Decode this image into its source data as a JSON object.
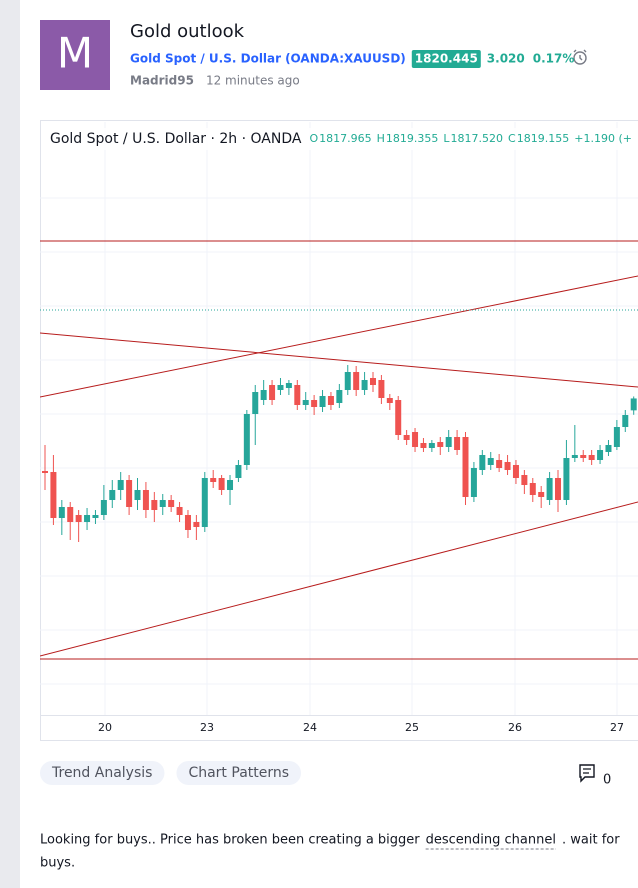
{
  "header": {
    "avatar_letter": "M",
    "title": "Gold outlook",
    "symbol_name": "Gold Spot / U.S. Dollar",
    "symbol_code": "(OANDA:XAUUSD)",
    "price": "1820.445",
    "change": "3.020",
    "change_percent": "0.17%",
    "author": "Madrid95",
    "time": "12 minutes ago"
  },
  "chart_data": {
    "type": "candlestick",
    "title": "Gold Spot / U.S. Dollar · 2h · OANDA",
    "legend": [
      {
        "key": "O",
        "text": "1817.965"
      },
      {
        "key": "H",
        "text": "1819.355"
      },
      {
        "key": "L",
        "text": "1817.520"
      },
      {
        "key": "C",
        "text": "1819.155"
      }
    ],
    "legend_change": "+1.190 (+",
    "xlabels": [
      "20",
      "23",
      "24",
      "25",
      "26",
      "27"
    ],
    "ylim": [
      1787.5,
      1844
    ],
    "up_color": "#26a69a",
    "down_color": "#ef5350",
    "candles": [
      [
        1811.9,
        1814.5,
        1810.0,
        1811.7
      ],
      [
        1811.8,
        1813.5,
        1806.5,
        1807.2
      ],
      [
        1807.2,
        1809.0,
        1805.5,
        1808.3
      ],
      [
        1808.3,
        1808.8,
        1805.0,
        1806.8
      ],
      [
        1807.5,
        1808.0,
        1804.8,
        1806.8
      ],
      [
        1806.8,
        1808.2,
        1806.0,
        1807.5
      ],
      [
        1807.2,
        1808.0,
        1806.6,
        1807.5
      ],
      [
        1807.5,
        1810.5,
        1807.0,
        1809.0
      ],
      [
        1809.0,
        1811.0,
        1808.2,
        1810.0
      ],
      [
        1810.0,
        1811.8,
        1809.0,
        1811.0
      ],
      [
        1811.0,
        1811.5,
        1807.5,
        1808.3
      ],
      [
        1809.0,
        1811.2,
        1808.0,
        1810.0
      ],
      [
        1810.0,
        1810.8,
        1807.2,
        1808.0
      ],
      [
        1809.0,
        1809.8,
        1806.8,
        1808.0
      ],
      [
        1808.3,
        1809.6,
        1807.5,
        1809.0
      ],
      [
        1809.0,
        1809.5,
        1807.8,
        1808.3
      ],
      [
        1808.3,
        1808.8,
        1806.8,
        1807.5
      ],
      [
        1807.5,
        1808.0,
        1805.2,
        1806.0
      ],
      [
        1806.8,
        1807.5,
        1805.0,
        1806.3
      ],
      [
        1806.3,
        1811.8,
        1805.8,
        1811.2
      ],
      [
        1811.2,
        1812.0,
        1810.2,
        1810.8
      ],
      [
        1811.2,
        1811.5,
        1809.5,
        1810.0
      ],
      [
        1810.0,
        1811.5,
        1808.5,
        1811.0
      ],
      [
        1811.2,
        1813.0,
        1810.8,
        1812.5
      ],
      [
        1812.5,
        1818.0,
        1812.0,
        1817.6
      ],
      [
        1817.6,
        1820.5,
        1814.5,
        1819.8
      ],
      [
        1819.0,
        1821.0,
        1818.5,
        1820.0
      ],
      [
        1820.5,
        1821.0,
        1818.5,
        1819.0
      ],
      [
        1820.0,
        1821.2,
        1819.5,
        1820.5
      ],
      [
        1820.2,
        1821.0,
        1819.5,
        1820.7
      ],
      [
        1820.5,
        1821.0,
        1818.0,
        1818.5
      ],
      [
        1818.5,
        1819.8,
        1818.0,
        1819.0
      ],
      [
        1819.0,
        1819.5,
        1817.5,
        1818.3
      ],
      [
        1818.3,
        1820.0,
        1817.8,
        1819.4
      ],
      [
        1819.4,
        1819.8,
        1818.0,
        1818.5
      ],
      [
        1818.7,
        1820.6,
        1818.2,
        1820.0
      ],
      [
        1820.0,
        1822.5,
        1819.5,
        1821.8
      ],
      [
        1821.8,
        1822.4,
        1819.4,
        1820.0
      ],
      [
        1820.0,
        1821.8,
        1819.5,
        1821.0
      ],
      [
        1821.2,
        1821.8,
        1819.8,
        1820.5
      ],
      [
        1821.0,
        1821.5,
        1818.6,
        1819.2
      ],
      [
        1819.2,
        1819.6,
        1818.0,
        1818.7
      ],
      [
        1819.0,
        1819.4,
        1815.0,
        1815.5
      ],
      [
        1815.5,
        1816.0,
        1814.5,
        1815.0
      ],
      [
        1815.8,
        1816.2,
        1813.8,
        1814.3
      ],
      [
        1814.7,
        1815.2,
        1813.8,
        1814.2
      ],
      [
        1814.2,
        1815.0,
        1813.8,
        1814.7
      ],
      [
        1814.8,
        1815.3,
        1813.5,
        1814.3
      ],
      [
        1814.3,
        1816.0,
        1813.8,
        1815.3
      ],
      [
        1815.3,
        1816.0,
        1813.5,
        1814.0
      ],
      [
        1815.3,
        1815.8,
        1808.5,
        1809.3
      ],
      [
        1809.3,
        1812.8,
        1808.8,
        1812.2
      ],
      [
        1812.0,
        1814.0,
        1811.5,
        1813.5
      ],
      [
        1812.5,
        1813.8,
        1812.0,
        1813.2
      ],
      [
        1813.0,
        1813.6,
        1811.8,
        1812.2
      ],
      [
        1812.8,
        1813.5,
        1811.5,
        1812.0
      ],
      [
        1812.5,
        1813.0,
        1810.6,
        1811.2
      ],
      [
        1811.5,
        1812.0,
        1809.6,
        1810.5
      ],
      [
        1810.7,
        1811.2,
        1808.8,
        1809.5
      ],
      [
        1809.8,
        1810.4,
        1808.2,
        1809.3
      ],
      [
        1809.0,
        1811.8,
        1808.5,
        1811.2
      ],
      [
        1811.2,
        1812.0,
        1807.8,
        1809.0
      ],
      [
        1809.0,
        1815.0,
        1808.5,
        1813.2
      ],
      [
        1813.2,
        1816.5,
        1812.8,
        1813.5
      ],
      [
        1813.5,
        1814.0,
        1812.8,
        1813.2
      ],
      [
        1813.5,
        1814.0,
        1812.5,
        1813.0
      ],
      [
        1813.0,
        1814.5,
        1812.6,
        1814.0
      ],
      [
        1813.8,
        1815.0,
        1813.4,
        1814.5
      ],
      [
        1814.3,
        1817.0,
        1814.0,
        1816.3
      ],
      [
        1816.3,
        1818.0,
        1815.8,
        1817.5
      ],
      [
        1817.965,
        1819.355,
        1817.52,
        1819.155
      ]
    ]
  },
  "tags": [
    "Trend Analysis",
    "Chart Patterns"
  ],
  "comments": 0,
  "description": {
    "line1_start": "Looking for buys.. Price has broken been creating a bigger",
    "link": "descending channel",
    "line1_end": ". wait for",
    "line2": "buys."
  }
}
